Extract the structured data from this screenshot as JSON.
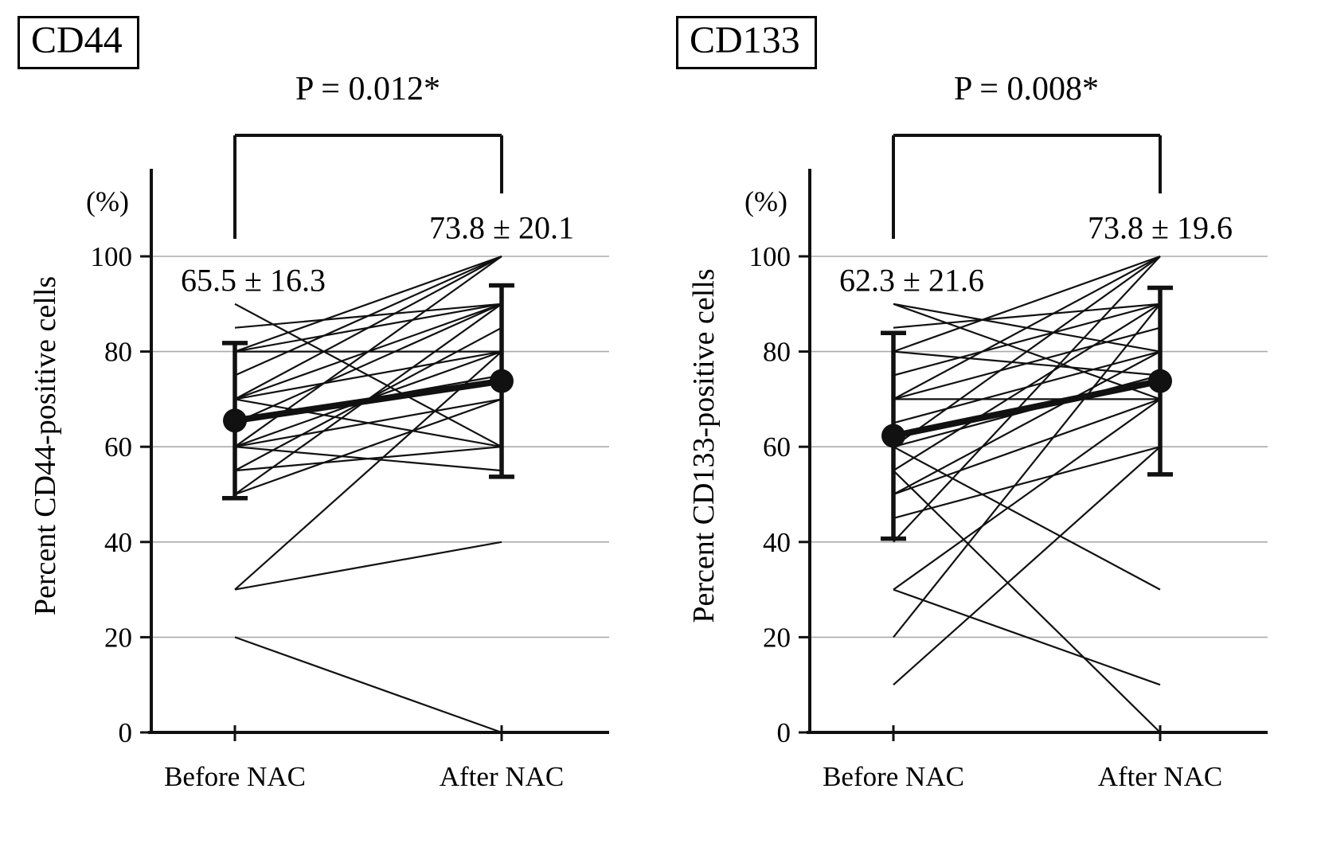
{
  "figure": {
    "background": "#ffffff",
    "line_color": "#111111",
    "grid_color": "#aaaaaa"
  },
  "chart_data": [
    {
      "type": "line",
      "title": "CD44",
      "p_value_label": "P = 0.012*",
      "ylabel": "Percent CD44-positive cells",
      "y_unit_label": "(%)",
      "categories": [
        "Before NAC",
        "After NAC"
      ],
      "yticks": [
        0,
        20,
        40,
        60,
        80,
        100
      ],
      "ylim": [
        0,
        100
      ],
      "grid": true,
      "legend": "none",
      "mean_series": {
        "name": "mean ± SD",
        "values": [
          65.5,
          73.8
        ],
        "sd": [
          16.3,
          20.1
        ],
        "labels": [
          "65.5 ± 16.3",
          "73.8 ± 20.1"
        ]
      },
      "patient_pairs": [
        [
          90,
          60
        ],
        [
          85,
          90
        ],
        [
          80,
          100
        ],
        [
          80,
          90
        ],
        [
          80,
          80
        ],
        [
          75,
          100
        ],
        [
          70,
          100
        ],
        [
          70,
          90
        ],
        [
          70,
          80
        ],
        [
          70,
          60
        ],
        [
          65,
          90
        ],
        [
          65,
          75
        ],
        [
          60,
          100
        ],
        [
          60,
          80
        ],
        [
          60,
          70
        ],
        [
          60,
          55
        ],
        [
          55,
          85
        ],
        [
          55,
          60
        ],
        [
          50,
          90
        ],
        [
          50,
          70
        ],
        [
          30,
          80
        ],
        [
          30,
          40
        ],
        [
          20,
          0
        ]
      ]
    },
    {
      "type": "line",
      "title": "CD133",
      "p_value_label": "P = 0.008*",
      "ylabel": "Percent CD133-positive cells",
      "y_unit_label": "(%)",
      "categories": [
        "Before NAC",
        "After NAC"
      ],
      "yticks": [
        0,
        20,
        40,
        60,
        80,
        100
      ],
      "ylim": [
        0,
        100
      ],
      "grid": true,
      "legend": "none",
      "mean_series": {
        "name": "mean ± SD",
        "values": [
          62.3,
          73.8
        ],
        "sd": [
          21.6,
          19.6
        ],
        "labels": [
          "62.3 ± 21.6",
          "73.8 ± 19.6"
        ]
      },
      "patient_pairs": [
        [
          90,
          80
        ],
        [
          90,
          70
        ],
        [
          85,
          90
        ],
        [
          80,
          100
        ],
        [
          80,
          75
        ],
        [
          75,
          90
        ],
        [
          70,
          100
        ],
        [
          70,
          85
        ],
        [
          70,
          70
        ],
        [
          65,
          80
        ],
        [
          60,
          100
        ],
        [
          60,
          75
        ],
        [
          60,
          30
        ],
        [
          55,
          90
        ],
        [
          55,
          0
        ],
        [
          50,
          80
        ],
        [
          50,
          70
        ],
        [
          45,
          60
        ],
        [
          40,
          100
        ],
        [
          30,
          70
        ],
        [
          30,
          10
        ],
        [
          20,
          90
        ],
        [
          10,
          60
        ]
      ]
    }
  ]
}
